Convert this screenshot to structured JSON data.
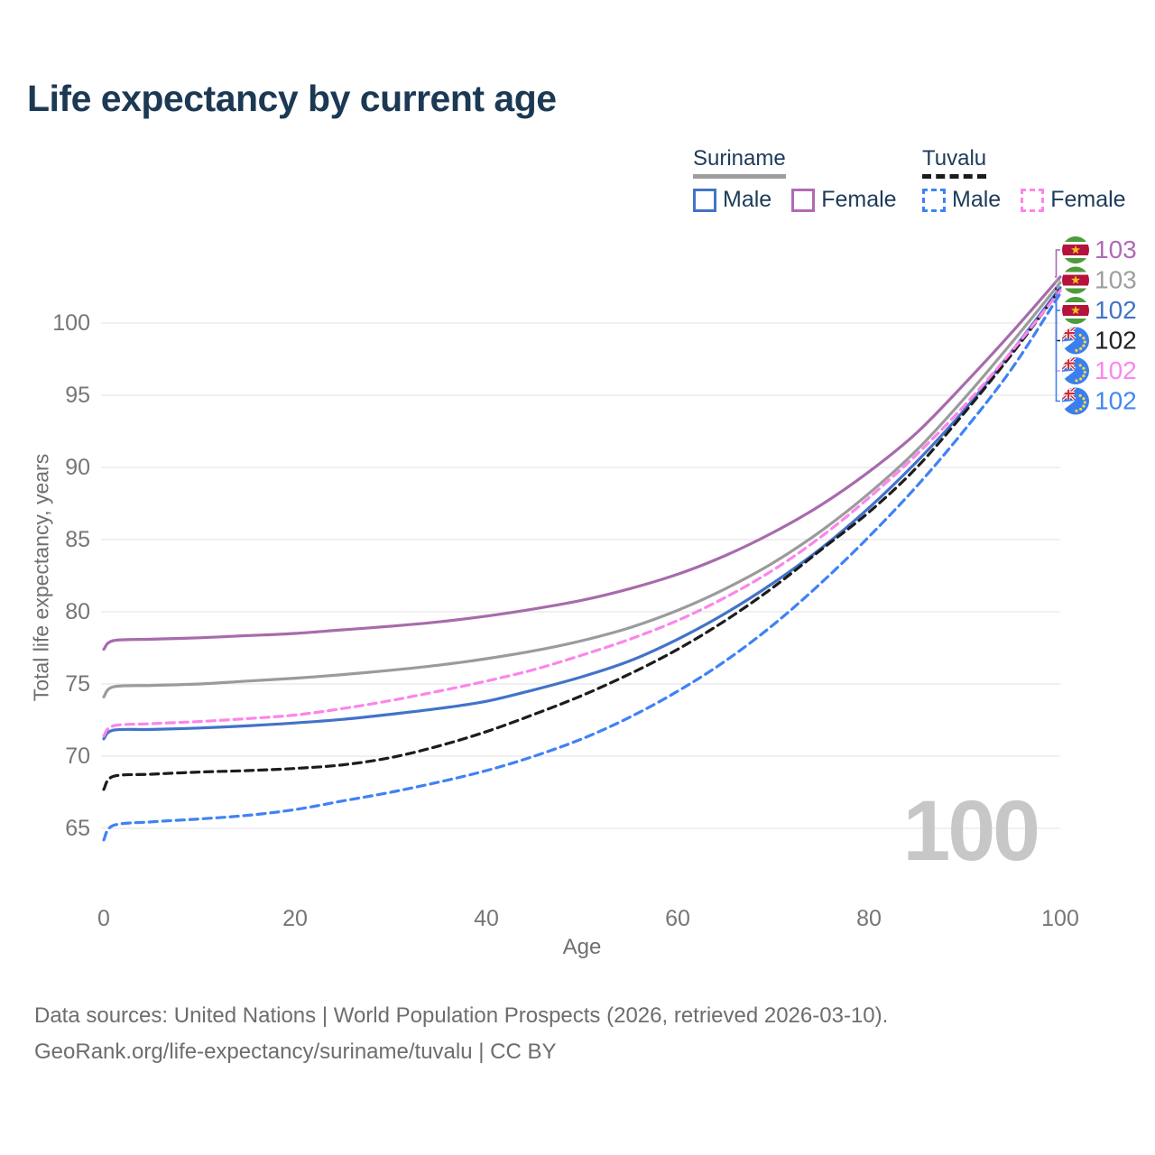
{
  "title": "Life expectancy by current age",
  "legend": {
    "groups": [
      {
        "name": "Suriname",
        "line_style": "solid",
        "underline_color": "#9e9e9e",
        "items": [
          {
            "label": "Male",
            "color": "#4273c8",
            "dashed": false
          },
          {
            "label": "Female",
            "color": "#b06ab4",
            "dashed": false
          }
        ]
      },
      {
        "name": "Tuvalu",
        "line_style": "dashed",
        "underline_color": "#1b1b1b",
        "items": [
          {
            "label": "Male",
            "color": "#3f82f5",
            "dashed": true
          },
          {
            "label": "Female",
            "color": "#fb86e9",
            "dashed": true
          }
        ]
      }
    ]
  },
  "chart_data": {
    "type": "line",
    "title": "Life expectancy by current age",
    "xlabel": "Age",
    "ylabel": "Total life expectancy, years",
    "xlim": [
      0,
      100
    ],
    "ylim": [
      63,
      104
    ],
    "xticks": [
      0,
      20,
      40,
      60,
      80,
      100
    ],
    "yticks": [
      65,
      70,
      75,
      80,
      85,
      90,
      95,
      100
    ],
    "grid": "horizontal-only",
    "legend_position": "top-right",
    "watermark": "100",
    "x": [
      0,
      1,
      5,
      10,
      15,
      20,
      25,
      30,
      35,
      40,
      45,
      50,
      55,
      60,
      65,
      70,
      75,
      80,
      85,
      90,
      95,
      100
    ],
    "series": [
      {
        "name": "Suriname Female",
        "country": "Suriname",
        "sex": "Female",
        "color": "#a76bac",
        "dashed": false,
        "end_label": "103",
        "end_label_color": "#b06ab4",
        "flag": "suriname",
        "values": [
          77.4,
          78.0,
          78.1,
          78.2,
          78.35,
          78.5,
          78.75,
          79.0,
          79.3,
          79.7,
          80.2,
          80.8,
          81.6,
          82.6,
          83.9,
          85.5,
          87.4,
          89.7,
          92.4,
          95.8,
          99.4,
          103.2
        ]
      },
      {
        "name": "Suriname (both sexes)",
        "country": "Suriname",
        "sex": "Both",
        "color": "#9b9b9b",
        "dashed": false,
        "end_label": "103",
        "end_label_color": "#9e9e9e",
        "flag": "suriname",
        "values": [
          74.1,
          74.8,
          74.9,
          75.0,
          75.2,
          75.4,
          75.65,
          75.95,
          76.3,
          76.75,
          77.3,
          78.0,
          78.9,
          80.1,
          81.6,
          83.4,
          85.6,
          88.2,
          91.2,
          94.8,
          98.7,
          102.8
        ]
      },
      {
        "name": "Suriname Male",
        "country": "Suriname",
        "sex": "Male",
        "color": "#4273c8",
        "dashed": false,
        "end_label": "102",
        "end_label_color": "#4273c8",
        "flag": "suriname",
        "values": [
          71.2,
          71.8,
          71.85,
          71.95,
          72.1,
          72.3,
          72.55,
          72.9,
          73.3,
          73.8,
          74.6,
          75.5,
          76.6,
          78.1,
          79.9,
          82.0,
          84.4,
          87.2,
          90.4,
          94.0,
          98.1,
          102.45
        ]
      },
      {
        "name": "Tuvalu (both sexes)",
        "country": "Tuvalu",
        "sex": "Both",
        "color": "#1c1c1c",
        "dashed": true,
        "end_label": "102",
        "end_label_color": "#212121",
        "flag": "tuvalu",
        "values": [
          67.7,
          68.6,
          68.75,
          68.9,
          69.0,
          69.15,
          69.4,
          69.9,
          70.7,
          71.7,
          72.9,
          74.2,
          75.7,
          77.4,
          79.4,
          81.7,
          84.3,
          86.9,
          90.0,
          93.8,
          97.9,
          102.35
        ]
      },
      {
        "name": "Tuvalu Female",
        "country": "Tuvalu",
        "sex": "Female",
        "color": "#fb86e9",
        "dashed": true,
        "end_label": "102",
        "end_label_color": "#fb86e9",
        "flag": "tuvalu",
        "values": [
          71.4,
          72.1,
          72.25,
          72.4,
          72.6,
          72.85,
          73.3,
          73.85,
          74.5,
          75.2,
          76.0,
          77.0,
          78.1,
          79.4,
          81.0,
          82.9,
          85.2,
          87.9,
          90.9,
          94.3,
          98.1,
          102.25
        ]
      },
      {
        "name": "Tuvalu Male",
        "country": "Tuvalu",
        "sex": "Male",
        "color": "#3f82f5",
        "dashed": true,
        "end_label": "102",
        "end_label_color": "#4287f5",
        "flag": "tuvalu",
        "values": [
          64.2,
          65.2,
          65.45,
          65.65,
          65.9,
          66.3,
          66.9,
          67.5,
          68.2,
          69.0,
          70.0,
          71.2,
          72.7,
          74.5,
          76.6,
          79.1,
          82.0,
          85.2,
          88.7,
          92.6,
          96.9,
          102.05
        ]
      }
    ]
  },
  "footer": {
    "line1": "Data sources: United Nations | World Population Prospects (2026, retrieved 2026-03-10).",
    "line2": "GeoRank.org/life-expectancy/suriname/tuvalu | CC BY"
  },
  "colors": {
    "title": "#1c3954",
    "axis_text": "#767676",
    "gridline": "#ebebeb",
    "watermark": "#c7c7c7",
    "footer_text": "#6d6d6d"
  }
}
